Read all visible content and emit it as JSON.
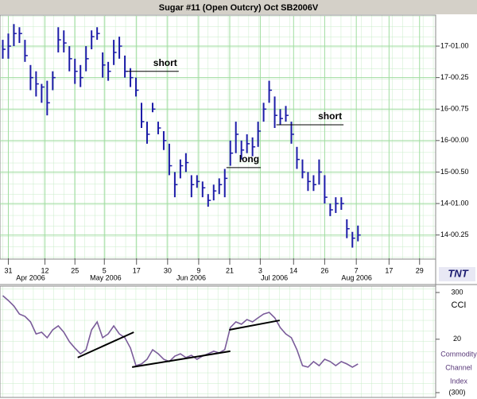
{
  "chart_data": {
    "type": "ohlc",
    "title": "Sugar #11 (Open Outcry) Oct SB2006V",
    "color": "#1c1ca8",
    "grid": true,
    "high": [
      17.6,
      17.7,
      17.85,
      17.8,
      17.6,
      17.2,
      17.1,
      16.9,
      16.95,
      17.1,
      17.8,
      17.75,
      17.5,
      17.3,
      17.2,
      17.5,
      17.75,
      17.8,
      17.4,
      17.25,
      17.6,
      17.65,
      17.35,
      17.15,
      17.0,
      16.6,
      16.3,
      16.6,
      16.3,
      16.15,
      15.95,
      15.5,
      15.7,
      15.8,
      15.45,
      15.45,
      15.35,
      15.15,
      15.3,
      15.4,
      15.55,
      16.0,
      16.3,
      16.0,
      16.1,
      16.05,
      16.3,
      16.6,
      16.95,
      16.7,
      16.5,
      16.55,
      16.3,
      15.9,
      15.7,
      15.5,
      15.45,
      15.7,
      15.45,
      15.0,
      15.1,
      15.1,
      14.75,
      14.55,
      14.65
    ],
    "low": [
      17.3,
      17.3,
      17.5,
      17.55,
      17.25,
      16.8,
      16.7,
      16.6,
      16.4,
      16.8,
      17.4,
      17.4,
      17.1,
      16.9,
      16.85,
      17.1,
      17.45,
      17.6,
      17.0,
      16.95,
      17.2,
      17.3,
      17.0,
      16.85,
      16.7,
      16.2,
      15.95,
      16.45,
      16.1,
      15.85,
      15.45,
      15.1,
      15.4,
      15.5,
      15.1,
      15.25,
      15.1,
      14.95,
      15.05,
      15.15,
      15.1,
      15.6,
      15.8,
      15.7,
      15.8,
      15.75,
      15.9,
      16.3,
      16.6,
      16.2,
      16.25,
      16.3,
      15.95,
      15.55,
      15.4,
      15.2,
      15.2,
      15.3,
      15.0,
      14.8,
      14.85,
      14.9,
      14.45,
      14.3,
      14.4
    ],
    "close": [
      17.45,
      17.5,
      17.7,
      17.7,
      17.35,
      17.0,
      16.9,
      16.85,
      16.6,
      17.0,
      17.6,
      17.55,
      17.3,
      17.1,
      17.0,
      17.3,
      17.65,
      17.7,
      17.2,
      17.1,
      17.4,
      17.5,
      17.1,
      17.0,
      16.8,
      16.3,
      16.1,
      16.5,
      16.2,
      16.0,
      15.6,
      15.3,
      15.6,
      15.65,
      15.3,
      15.35,
      15.25,
      15.05,
      15.2,
      15.3,
      15.4,
      15.8,
      16.1,
      15.85,
      15.95,
      15.9,
      16.15,
      16.5,
      16.8,
      16.4,
      16.35,
      16.4,
      16.1,
      15.7,
      15.5,
      15.35,
      15.3,
      15.5,
      15.1,
      14.9,
      15.0,
      15.0,
      14.6,
      14.45,
      14.5
    ],
    "xlim": [
      -0.5,
      78
    ],
    "xticks": [
      {
        "value": 1,
        "label": "31"
      },
      {
        "value": 7.6,
        "label": "12"
      },
      {
        "value": 13,
        "label": "25"
      },
      {
        "value": 18.3,
        "label": "5"
      },
      {
        "value": 24.1,
        "label": "17"
      },
      {
        "value": 29.7,
        "label": "30"
      },
      {
        "value": 35.3,
        "label": "9"
      },
      {
        "value": 40.9,
        "label": "21"
      },
      {
        "value": 46.4,
        "label": "3"
      },
      {
        "value": 52.4,
        "label": "14"
      },
      {
        "value": 58,
        "label": "26"
      },
      {
        "value": 63.7,
        "label": "7"
      },
      {
        "value": 69.6,
        "label": "17"
      },
      {
        "value": 75.1,
        "label": "29"
      }
    ],
    "month_labels": [
      {
        "value": 2.4,
        "label": "Apr 2006"
      },
      {
        "value": 15.7,
        "label": "May 2006"
      },
      {
        "value": 31.3,
        "label": "Jun 2006"
      },
      {
        "value": 46.5,
        "label": "Jul 2006"
      },
      {
        "value": 61,
        "label": "Aug 2006"
      }
    ],
    "ylim": [
      14.13,
      17.98
    ],
    "yticks": [
      {
        "value": 17.5,
        "label": "17-01.00"
      },
      {
        "value": 17.0,
        "label": "17-00.25"
      },
      {
        "value": 16.5,
        "label": "16-00.75"
      },
      {
        "value": 16.0,
        "label": "16-00.00"
      },
      {
        "value": 15.5,
        "label": "15-00.50"
      },
      {
        "value": 15.0,
        "label": "14-01.00"
      },
      {
        "value": 14.5,
        "label": "14-00.25"
      }
    ],
    "annotations": [
      {
        "label": "short",
        "value": 17.1,
        "x": [
          22.4,
          31.7
        ]
      },
      {
        "label": "long",
        "value": 15.57,
        "x": [
          40.3,
          46.5
        ]
      },
      {
        "label": "short",
        "value": 16.25,
        "x": [
          49.3,
          61.4
        ]
      }
    ],
    "logo": "TNT",
    "cci": {
      "label": "CCI",
      "description": [
        "Commodity",
        "Channel",
        "Index"
      ],
      "color": "#7a5c9a",
      "ylim": [
        -300,
        300
      ],
      "yticks": [
        {
          "value": 300,
          "label": "300"
        },
        {
          "value": 20,
          "label": "20"
        },
        {
          "value": -300,
          "label": "(300)"
        }
      ],
      "values": [
        281,
        252,
        219,
        171,
        157,
        124,
        52,
        62,
        29,
        76,
        100,
        62,
        5,
        -33,
        -67,
        -43,
        76,
        124,
        29,
        52,
        100,
        52,
        29,
        -33,
        -138,
        -128,
        -100,
        -43,
        -67,
        -100,
        -114,
        -81,
        -67,
        -90,
        -76,
        -100,
        -81,
        -67,
        -52,
        -62,
        -43,
        90,
        124,
        110,
        138,
        124,
        148,
        171,
        181,
        148,
        90,
        52,
        29,
        -43,
        -138,
        -147,
        -114,
        -138,
        -100,
        -114,
        -138,
        -114,
        -128,
        -147,
        -128
      ],
      "trendlines": [
        {
          "x": [
            13.5,
            23.6
          ],
          "values": [
            -90,
            62
          ]
        },
        {
          "x": [
            23.3,
            41
          ],
          "values": [
            -147,
            -52
          ]
        },
        {
          "x": [
            40.8,
            49.9
          ],
          "values": [
            76,
            133
          ]
        }
      ]
    }
  }
}
